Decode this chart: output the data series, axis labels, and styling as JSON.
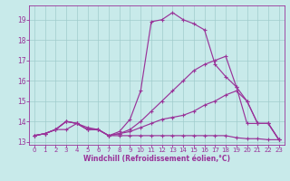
{
  "background_color": "#c8eaea",
  "grid_color": "#a0cccc",
  "line_color": "#993399",
  "xlabel": "Windchill (Refroidissement éolien,°C)",
  "xlim_min": -0.5,
  "xlim_max": 23.5,
  "ylim_min": 12.85,
  "ylim_max": 19.7,
  "yticks": [
    13,
    14,
    15,
    16,
    17,
    18,
    19
  ],
  "xticks": [
    0,
    1,
    2,
    3,
    4,
    5,
    6,
    7,
    8,
    9,
    10,
    11,
    12,
    13,
    14,
    15,
    16,
    17,
    18,
    19,
    20,
    21,
    22,
    23
  ],
  "series1": [
    13.3,
    13.4,
    13.6,
    13.6,
    13.9,
    13.6,
    13.6,
    13.3,
    13.3,
    13.3,
    13.3,
    13.3,
    13.3,
    13.3,
    13.3,
    13.3,
    13.3,
    13.3,
    13.3,
    13.2,
    13.15,
    13.15,
    13.1,
    13.1
  ],
  "series2": [
    13.3,
    13.4,
    13.6,
    14.0,
    13.9,
    13.6,
    13.6,
    13.3,
    13.4,
    13.5,
    13.7,
    13.9,
    14.1,
    14.2,
    14.3,
    14.5,
    14.8,
    15.0,
    15.3,
    15.5,
    15.0,
    13.9,
    13.9,
    13.1
  ],
  "series3": [
    13.3,
    13.4,
    13.6,
    14.0,
    13.9,
    13.6,
    13.6,
    13.3,
    13.4,
    13.6,
    14.0,
    14.5,
    15.0,
    15.5,
    16.0,
    16.5,
    16.8,
    17.0,
    17.2,
    15.7,
    15.0,
    13.9,
    13.9,
    13.1
  ],
  "series4": [
    13.3,
    13.4,
    13.6,
    14.0,
    13.9,
    13.7,
    13.6,
    13.3,
    13.5,
    14.1,
    15.5,
    18.9,
    19.0,
    19.35,
    19.0,
    18.8,
    18.5,
    16.8,
    16.2,
    15.7,
    13.9,
    13.9,
    13.9,
    13.1
  ]
}
